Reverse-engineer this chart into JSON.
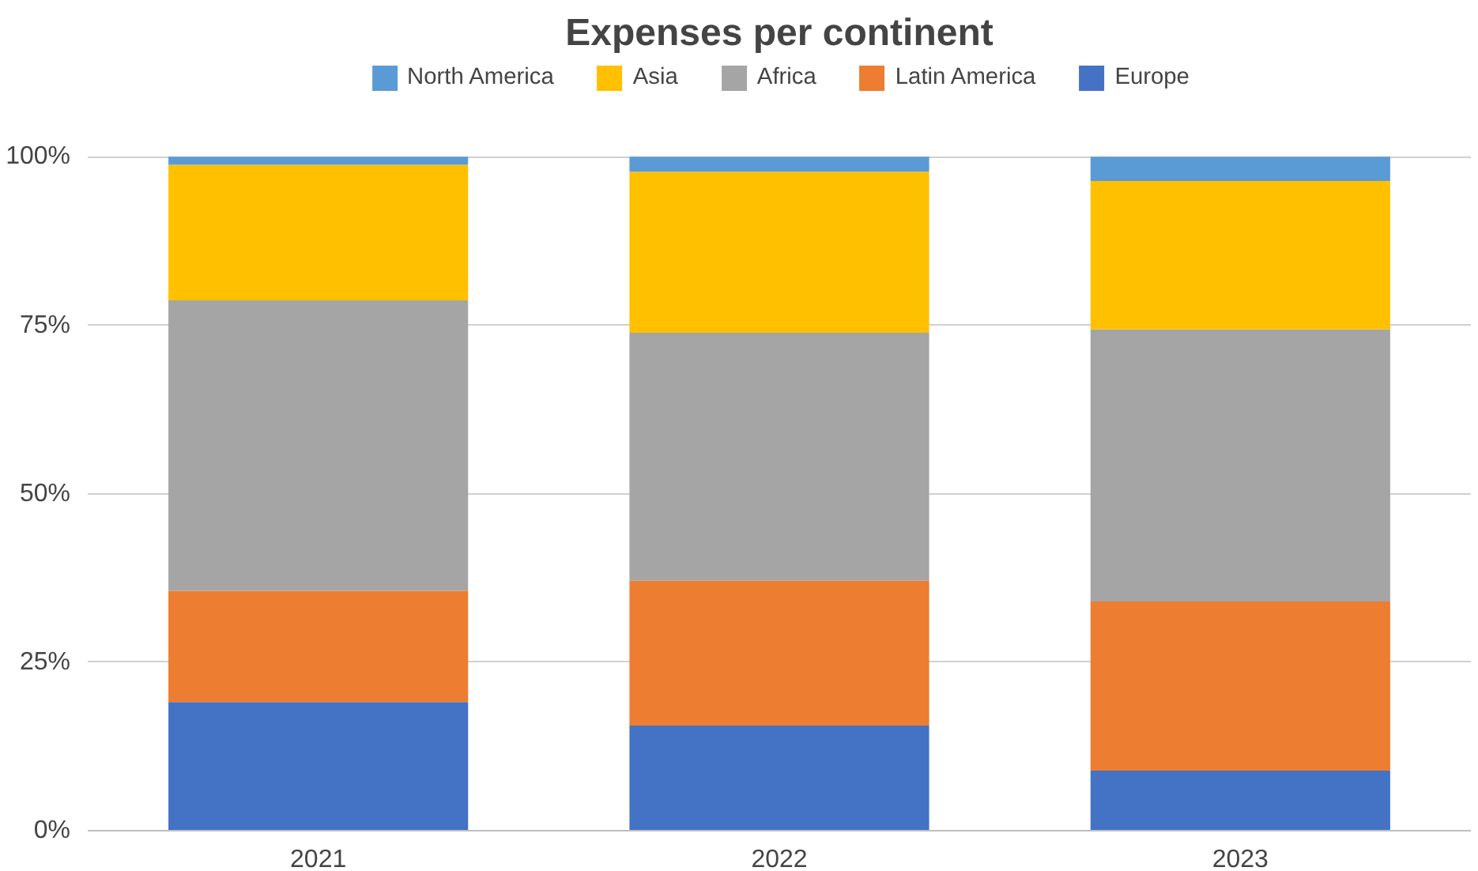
{
  "chart_data": {
    "type": "bar",
    "title": "Expenses per continent",
    "stacked": true,
    "categories": [
      "2021",
      "2022",
      "2023"
    ],
    "series": [
      {
        "name": "Europe",
        "color": "#4472c4",
        "values": [
          19.1,
          15.6,
          8.9
        ]
      },
      {
        "name": "Latin America",
        "color": "#ed7d31",
        "values": [
          16.5,
          21.5,
          25.1
        ]
      },
      {
        "name": "Africa",
        "color": "#a5a5a5",
        "values": [
          43.1,
          36.8,
          40.4
        ]
      },
      {
        "name": "Asia",
        "color": "#ffc000",
        "values": [
          20.1,
          23.9,
          22.0
        ]
      },
      {
        "name": "North America",
        "color": "#5b9bd5",
        "values": [
          1.2,
          2.2,
          3.6
        ]
      }
    ],
    "ylim": [
      0,
      114
    ],
    "yticks": [
      {
        "value": 0,
        "label": "0%"
      },
      {
        "value": 25,
        "label": "25%"
      },
      {
        "value": 50,
        "label": "50%"
      },
      {
        "value": 75,
        "label": "75%"
      },
      {
        "value": 100,
        "label": "100%"
      }
    ],
    "grid": "y",
    "legend": "top"
  }
}
